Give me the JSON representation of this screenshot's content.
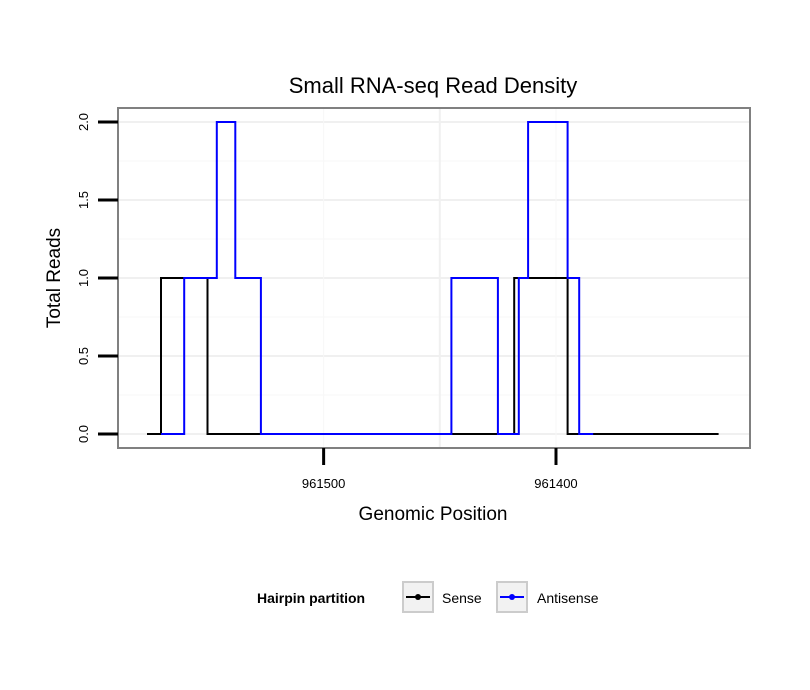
{
  "chart_data": {
    "type": "line",
    "line_style": "step",
    "title": "Small RNA-seq Read Density",
    "xlabel": "Genomic Position",
    "ylabel": "Total Reads",
    "x_reversed": true,
    "xlim": [
      961588.5,
      961316.5
    ],
    "ylim": [
      -0.09,
      2.09
    ],
    "x_ticks": [
      961500,
      961400
    ],
    "x_tick_labels": [
      "961500",
      "961400"
    ],
    "y_ticks": [
      0.0,
      0.5,
      1.0,
      1.5,
      2.0
    ],
    "y_tick_labels": [
      "0.0",
      "0.5",
      "1.0",
      "1.5",
      "2.0"
    ],
    "grid": true,
    "legend": {
      "title": "Hairpin partition",
      "position": "bottom",
      "entries": [
        "Sense",
        "Antisense"
      ]
    },
    "series": [
      {
        "name": "Sense",
        "color": "#000000",
        "x": [
          961576,
          961570,
          961570,
          961552,
          961552,
          961550,
          961550,
          961418,
          961418,
          961395,
          961395,
          961330
        ],
        "y": [
          0,
          0,
          1,
          1,
          1,
          1,
          0,
          0,
          1,
          1,
          0,
          0
        ]
      },
      {
        "name": "Antisense",
        "color": "#0000ff",
        "x": [
          961570,
          961560,
          961560,
          961554,
          961554,
          961546,
          961546,
          961538,
          961538,
          961527,
          961527,
          961445,
          961445,
          961425,
          961425,
          961416,
          961416,
          961412,
          961412,
          961395,
          961395,
          961390,
          961390,
          961384
        ],
        "y": [
          0,
          0,
          1,
          1,
          1,
          1,
          2,
          2,
          1,
          1,
          0,
          0,
          1,
          1,
          0,
          0,
          1,
          1,
          2,
          2,
          1,
          1,
          0,
          0
        ]
      }
    ]
  }
}
